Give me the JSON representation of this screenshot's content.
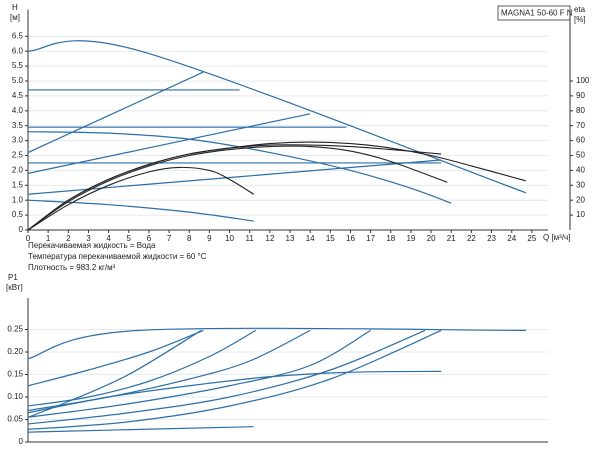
{
  "chart_data": [
    {
      "type": "line",
      "title": "MAGNA1 50-60 F N",
      "ylabel": "H",
      "yunit": "[м]",
      "y2label": "eta",
      "y2unit": "[%]",
      "xlabel": "Q [м³/ч]",
      "annotations": [
        "Перекачиваемая жидкость = Вода",
        "Температура перекачиваемой жидкости = 60 °C",
        "Плотность = 983.2 кг/м³"
      ],
      "xlim": [
        0,
        25.8
      ],
      "xticks": [
        0,
        1,
        2,
        3,
        4,
        5,
        6,
        7,
        8,
        9,
        10,
        11,
        12,
        13,
        14,
        15,
        16,
        17,
        18,
        19,
        20,
        21,
        22,
        23,
        24,
        25
      ],
      "ylim": [
        0,
        7.4
      ],
      "yticks": [
        0,
        0.5,
        {
          "value": 1,
          "label": "1.0"
        },
        1.5,
        {
          "value": 2,
          "label": "2.0"
        },
        2.5,
        {
          "value": 3,
          "label": "3.0"
        },
        3.5,
        {
          "value": 4,
          "label": "4.0"
        },
        4.5,
        {
          "value": 5,
          "label": "5.0"
        },
        5.5,
        {
          "value": 6,
          "label": "6.0"
        },
        6.5
      ],
      "y2lim": [
        0,
        148
      ],
      "y2ticks": [
        10,
        20,
        30,
        40,
        50,
        60,
        70,
        80,
        90,
        100
      ],
      "grid": true,
      "series": [
        {
          "color": "#2a6fa8",
          "x": [
            0,
            5.6,
            24.7
          ],
          "values": [
            6.0,
            6.0,
            1.25
          ]
        },
        {
          "color": "#2a6fa8",
          "x": [
            0,
            10.5
          ],
          "values": [
            4.7,
            4.7
          ]
        },
        {
          "color": "#2a6fa8",
          "x": [
            0,
            15.8
          ],
          "values": [
            3.45,
            3.45
          ]
        },
        {
          "color": "#2a6fa8",
          "x": [
            0,
            20.5
          ],
          "values": [
            2.25,
            2.25
          ]
        },
        {
          "color": "#2a6fa8",
          "x": [
            0,
            8.7
          ],
          "values": [
            2.6,
            5.3
          ]
        },
        {
          "color": "#2a6fa8",
          "x": [
            0,
            14
          ],
          "values": [
            1.9,
            3.9
          ]
        },
        {
          "color": "#2a6fa8",
          "x": [
            0,
            20.5
          ],
          "values": [
            1.2,
            2.35
          ]
        },
        {
          "color": "#2a6fa8",
          "x": [
            0,
            4,
            8,
            12,
            16,
            19,
            21
          ],
          "values": [
            3.3,
            3.25,
            3.05,
            2.6,
            2.0,
            1.4,
            0.9
          ]
        },
        {
          "color": "#2a6fa8",
          "x": [
            0,
            4,
            8,
            11.2
          ],
          "values": [
            1.0,
            0.85,
            0.6,
            0.3
          ]
        },
        {
          "color": "#222222",
          "axis": "y2",
          "x": [
            0,
            2,
            4,
            6,
            8,
            10,
            12,
            14,
            16,
            18,
            20,
            22,
            24.7
          ],
          "values": [
            0,
            20,
            34,
            44,
            51,
            55,
            58,
            59,
            58,
            55,
            50,
            43,
            33
          ]
        },
        {
          "color": "#222222",
          "axis": "y2",
          "x": [
            0,
            2,
            4,
            6,
            8,
            10,
            12,
            14,
            16,
            18,
            20.8
          ],
          "values": [
            0,
            19,
            33,
            43,
            50,
            54,
            56,
            56,
            53,
            46,
            32
          ]
        },
        {
          "color": "#222222",
          "axis": "y2",
          "x": [
            0,
            2,
            4,
            6,
            7.5,
            9,
            10,
            11.2
          ],
          "values": [
            0,
            17,
            30,
            39,
            42,
            40,
            34,
            24
          ]
        },
        {
          "color": "#222222",
          "axis": "y2",
          "x": [
            0,
            2,
            4,
            6,
            8,
            10,
            12,
            14,
            16,
            18,
            20.5
          ],
          "values": [
            0,
            20,
            34,
            44,
            51,
            55,
            57,
            57,
            56,
            54,
            51
          ]
        }
      ]
    },
    {
      "type": "line",
      "ylabel": "P1",
      "yunit": "[кВт]",
      "xlim": [
        0,
        25.8
      ],
      "ylim": [
        0,
        0.32
      ],
      "yticks": [
        0,
        0.05,
        {
          "value": 0.1,
          "label": "0.10"
        },
        0.15,
        {
          "value": 0.2,
          "label": "0.20"
        },
        0.25
      ],
      "grid": true,
      "series": [
        {
          "color": "#2a6fa8",
          "x": [
            0,
            5.5,
            24.7
          ],
          "values": [
            0.185,
            0.248,
            0.248
          ]
        },
        {
          "color": "#2a6fa8",
          "x": [
            0,
            3,
            6,
            8.7
          ],
          "values": [
            0.125,
            0.16,
            0.2,
            0.248
          ]
        },
        {
          "color": "#2a6fa8",
          "x": [
            0,
            2,
            5,
            8.6
          ],
          "values": [
            0.055,
            0.09,
            0.15,
            0.248
          ]
        },
        {
          "color": "#2a6fa8",
          "x": [
            0,
            3,
            6,
            9,
            11.3
          ],
          "values": [
            0.08,
            0.1,
            0.135,
            0.19,
            0.248
          ]
        },
        {
          "color": "#2a6fa8",
          "x": [
            0,
            4,
            8,
            11,
            14
          ],
          "values": [
            0.07,
            0.1,
            0.14,
            0.18,
            0.248
          ]
        },
        {
          "color": "#2a6fa8",
          "x": [
            0,
            5,
            10,
            14,
            17
          ],
          "values": [
            0.055,
            0.085,
            0.125,
            0.17,
            0.248
          ]
        },
        {
          "color": "#2a6fa8",
          "x": [
            0,
            5,
            10,
            15,
            19.7
          ],
          "values": [
            0.04,
            0.065,
            0.1,
            0.16,
            0.248
          ]
        },
        {
          "color": "#2a6fa8",
          "x": [
            0,
            5,
            10,
            15,
            20.5
          ],
          "values": [
            0.028,
            0.045,
            0.08,
            0.14,
            0.248
          ]
        },
        {
          "color": "#2a6fa8",
          "x": [
            0,
            4,
            8,
            12,
            16,
            20.5
          ],
          "values": [
            0.065,
            0.1,
            0.125,
            0.145,
            0.155,
            0.157
          ]
        },
        {
          "color": "#2a6fa8",
          "x": [
            0,
            11.2
          ],
          "values": [
            0.022,
            0.034
          ]
        }
      ]
    }
  ]
}
